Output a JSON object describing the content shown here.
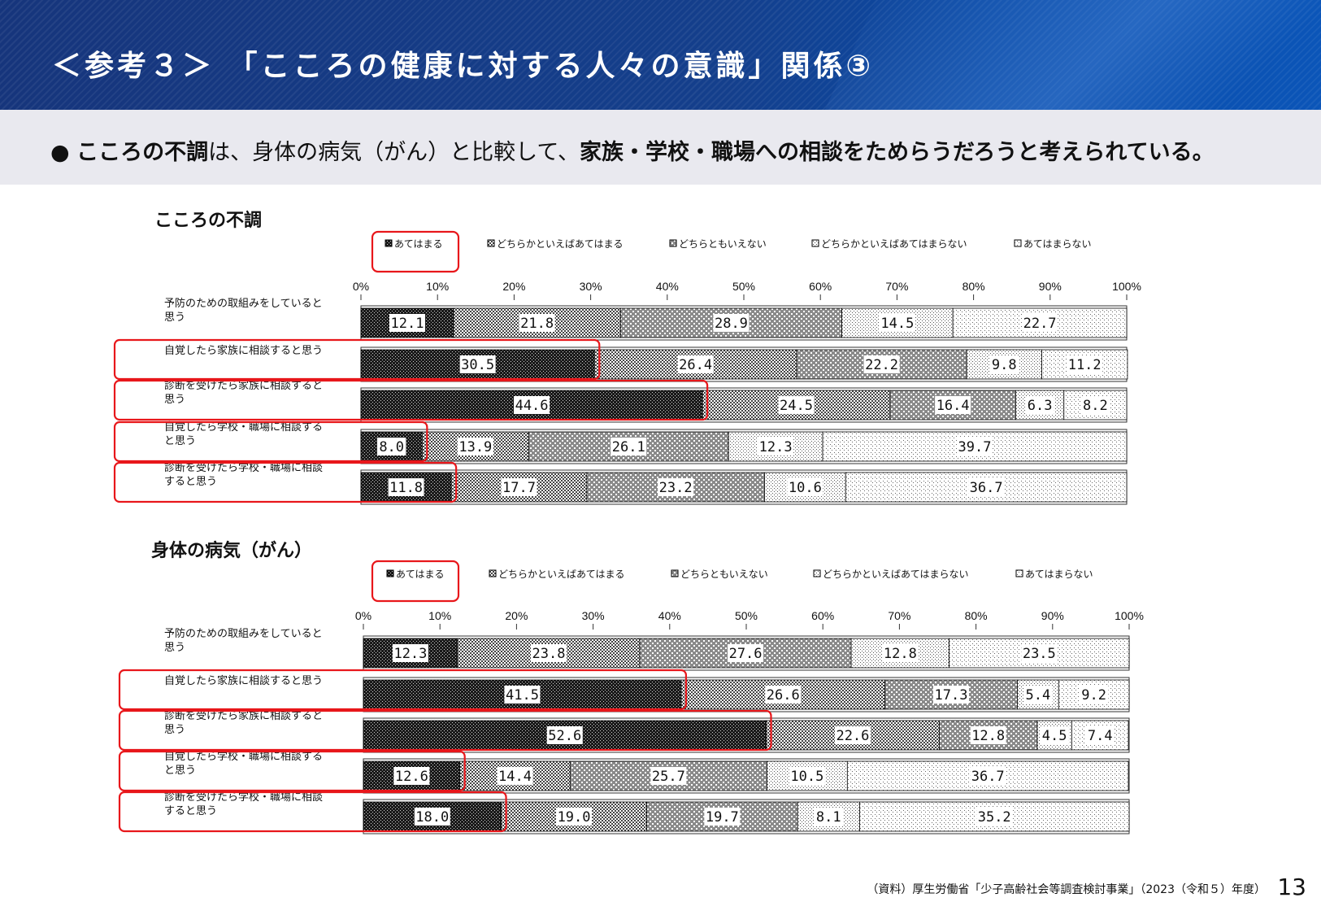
{
  "header": {
    "title": "＜参考３＞ 「こころの健康に対する人々の意識」関係③"
  },
  "subtitle": {
    "bullet": "●",
    "parts": [
      {
        "text": "こころの不調",
        "bold": true
      },
      {
        "text": "は、身体の病気（がん）と比較して、",
        "bold": false
      },
      {
        "text": "家族・学校・職場への相談をためらうだろうと考えられている。",
        "bold": true
      }
    ]
  },
  "colors": {
    "header_bg": "#16357c",
    "highlight": "#e8171b",
    "subtitle_bg": "#e9e9ef"
  },
  "footer": {
    "source": "（資料）厚生労働省「少子高齢社会等調査検討事業」（2023（令和５）年度）",
    "page_number": "13"
  },
  "chart_data": [
    {
      "type": "stacked-bar-horizontal",
      "title": "こころの不調",
      "legend": [
        "あてはまる",
        "どちらかといえばあてはまる",
        "どちらともいえない",
        "どちらかといえばあてはまらない",
        "あてはまらない"
      ],
      "xticks": [
        "0%",
        "10%",
        "20%",
        "30%",
        "40%",
        "50%",
        "60%",
        "70%",
        "80%",
        "90%",
        "100%"
      ],
      "xlim": [
        0,
        100
      ],
      "grid": false,
      "categories": [
        [
          "予防のための取組みをしていると",
          "思う"
        ],
        [
          "自覚したら家族に相談すると思う"
        ],
        [
          "診断を受けたら家族に相談すると",
          "思う"
        ],
        [
          "自覚したら学校・職場に相談する",
          "と思う"
        ],
        [
          "診断を受けたら学校・職場に相談",
          "すると思う"
        ]
      ],
      "values": [
        [
          12.1,
          21.8,
          28.9,
          14.5,
          22.7
        ],
        [
          30.5,
          26.4,
          22.2,
          9.8,
          11.2
        ],
        [
          44.6,
          24.5,
          16.4,
          6.3,
          8.2
        ],
        [
          8.0,
          13.9,
          26.1,
          12.3,
          39.7
        ],
        [
          11.8,
          17.7,
          23.2,
          10.6,
          36.7
        ]
      ],
      "highlighted_rows": [
        1,
        2,
        3,
        4
      ],
      "highlighted_legend": 0
    },
    {
      "type": "stacked-bar-horizontal",
      "title": "身体の病気（がん）",
      "legend": [
        "あてはまる",
        "どちらかといえばあてはまる",
        "どちらともいえない",
        "どちらかといえばあてはまらない",
        "あてはまらない"
      ],
      "xticks": [
        "0%",
        "10%",
        "20%",
        "30%",
        "40%",
        "50%",
        "60%",
        "70%",
        "80%",
        "90%",
        "100%"
      ],
      "xlim": [
        0,
        100
      ],
      "grid": false,
      "categories": [
        [
          "予防のための取組みをしていると",
          "思う"
        ],
        [
          "自覚したら家族に相談すると思う"
        ],
        [
          "診断を受けたら家族に相談すると",
          "思う"
        ],
        [
          "自覚したら学校・職場に相談する",
          "と思う"
        ],
        [
          "診断を受けたら学校・職場に相談",
          "すると思う"
        ]
      ],
      "values": [
        [
          12.3,
          23.8,
          27.6,
          12.8,
          23.5
        ],
        [
          41.5,
          26.6,
          17.3,
          5.4,
          9.2
        ],
        [
          52.6,
          22.6,
          12.8,
          4.5,
          7.4
        ],
        [
          12.6,
          14.4,
          25.7,
          10.5,
          36.7
        ],
        [
          18.0,
          19.0,
          19.7,
          8.1,
          35.2
        ]
      ],
      "highlighted_rows": [
        1,
        2,
        3,
        4
      ],
      "highlighted_legend": 0
    }
  ]
}
